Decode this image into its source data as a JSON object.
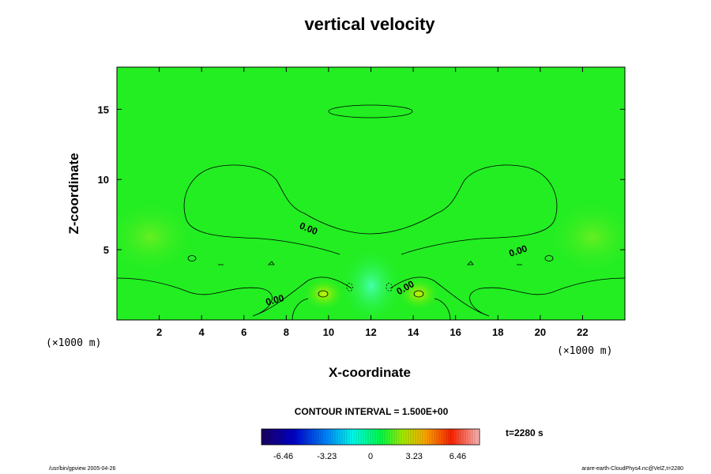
{
  "chart_data": {
    "type": "heatmap",
    "title": "vertical velocity",
    "xlabel": "X-coordinate",
    "ylabel": "Z-coordinate",
    "x_unit": "(×1000 m)",
    "y_unit": "(×1000 m)",
    "xlim": [
      0,
      24
    ],
    "ylim": [
      0,
      18
    ],
    "x_ticks": [
      2,
      4,
      6,
      8,
      10,
      12,
      14,
      16,
      18,
      20,
      22
    ],
    "y_ticks": [
      5,
      10,
      15
    ],
    "contour_labels": [
      {
        "text": "0.00",
        "x": 9.0,
        "y": 6.3
      },
      {
        "text": "0.00",
        "x": 7.5,
        "y": 1.2
      },
      {
        "text": "0.00",
        "x": 13.7,
        "y": 2.1
      },
      {
        "text": "0.00",
        "x": 19.0,
        "y": 4.7
      }
    ],
    "contour_interval": "CONTOUR INTERVAL = 1.500E+00",
    "colorbar": {
      "ticks": [
        "-6.46",
        "-3.23",
        "0",
        "3.23",
        "6.46"
      ],
      "values": [
        -6.46,
        -3.23,
        0,
        3.23,
        6.46
      ],
      "range": [
        -8.07,
        8.07
      ]
    },
    "time_label": "t=2280 s",
    "background_color": "#22ee22"
  },
  "footer": {
    "left": "/usr/bin/gpview 2005-04-26",
    "right": "arare-earth-CloudPhys4.nc@VelZ,t=2280"
  }
}
